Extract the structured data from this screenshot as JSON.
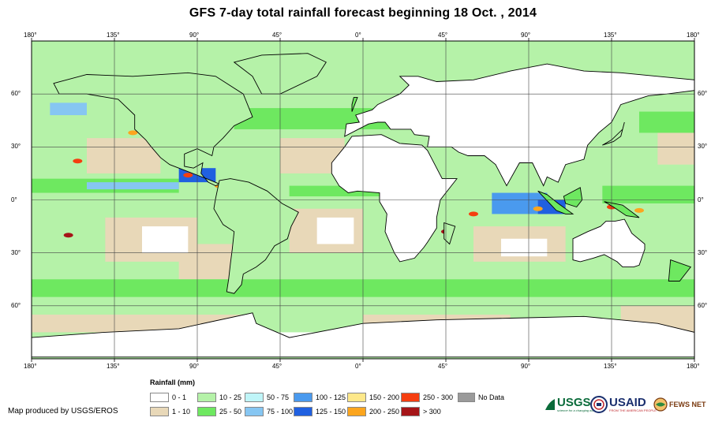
{
  "title": "GFS 7-day total rainfall forecast beginning 18 Oct. , 2014",
  "lon_labels": [
    "180°",
    "135°",
    "90°",
    "45°",
    "0°",
    "45°",
    "90°",
    "135°",
    "180°"
  ],
  "lat_labels": [
    "60°",
    "30°",
    "0°",
    "30°",
    "60°"
  ],
  "legend": {
    "title": "Rainfall (mm)",
    "items": [
      {
        "label": "0 - 1",
        "color": "#ffffff"
      },
      {
        "label": "1 - 10",
        "color": "#e8d8b8"
      },
      {
        "label": "10 - 25",
        "color": "#b5f2a8"
      },
      {
        "label": "25 - 50",
        "color": "#6ee860"
      },
      {
        "label": "50 - 75",
        "color": "#bff5f8"
      },
      {
        "label": "75 - 100",
        "color": "#86c6f2"
      },
      {
        "label": "100 - 125",
        "color": "#4a9aee"
      },
      {
        "label": "125 - 150",
        "color": "#2060e0"
      },
      {
        "label": "150 - 200",
        "color": "#fde88a"
      },
      {
        "label": "200 - 250",
        "color": "#fca51e"
      },
      {
        "label": "250 - 300",
        "color": "#f53e10"
      },
      {
        "label": "> 300",
        "color": "#a51518"
      },
      {
        "label": "No Data",
        "color": "#9a9a9a"
      }
    ]
  },
  "credit": "Map produced by USGS/EROS",
  "logos": [
    {
      "name": "USGS",
      "text": "USGS",
      "tagline": "science for a changing world",
      "color": "#0a6b3a"
    },
    {
      "name": "USAID",
      "text": "USAID",
      "tagline": "FROM THE AMERICAN PEOPLE",
      "color": "#1a2f6e"
    },
    {
      "name": "FEWS NET",
      "text": "FEWS NET",
      "color": "#7a3a10"
    }
  ]
}
